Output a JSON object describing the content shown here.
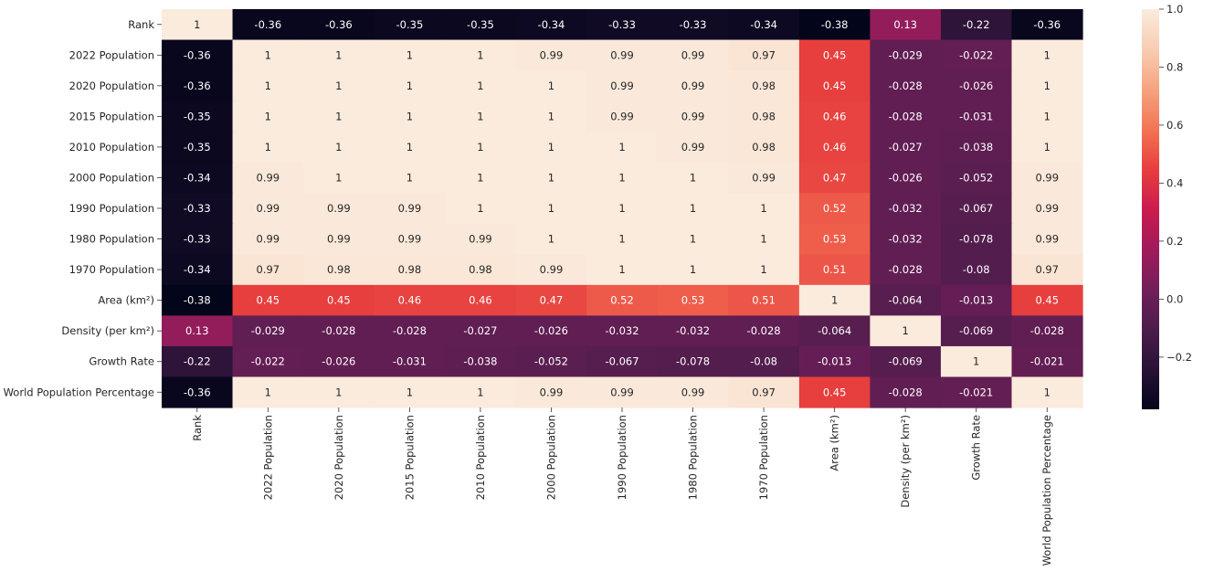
{
  "chart_data": {
    "type": "heatmap",
    "colormap": "rocket",
    "vmin": -0.38,
    "vmax": 1.0,
    "rows": [
      "Rank",
      "2022 Population",
      "2020 Population",
      "2015 Population",
      "2010 Population",
      "2000 Population",
      "1990 Population",
      "1980 Population",
      "1970 Population",
      "Area (km²)",
      "Density (per km²)",
      "Growth Rate",
      "World Population Percentage"
    ],
    "columns": [
      "Rank",
      "2022 Population",
      "2020 Population",
      "2015 Population",
      "2010 Population",
      "2000 Population",
      "1990 Population",
      "1980 Population",
      "1970 Population",
      "Area (km²)",
      "Density (per km²)",
      "Growth Rate",
      "World Population Percentage"
    ],
    "values": [
      [
        1,
        -0.36,
        -0.36,
        -0.35,
        -0.35,
        -0.34,
        -0.33,
        -0.33,
        -0.34,
        -0.38,
        0.13,
        -0.22,
        -0.36
      ],
      [
        -0.36,
        1,
        1,
        1,
        1,
        0.99,
        0.99,
        0.99,
        0.97,
        0.45,
        -0.029,
        -0.022,
        1
      ],
      [
        -0.36,
        1,
        1,
        1,
        1,
        1,
        0.99,
        0.99,
        0.98,
        0.45,
        -0.028,
        -0.026,
        1
      ],
      [
        -0.35,
        1,
        1,
        1,
        1,
        1,
        0.99,
        0.99,
        0.98,
        0.46,
        -0.028,
        -0.031,
        1
      ],
      [
        -0.35,
        1,
        1,
        1,
        1,
        1,
        1,
        0.99,
        0.98,
        0.46,
        -0.027,
        -0.038,
        1
      ],
      [
        -0.34,
        0.99,
        1,
        1,
        1,
        1,
        1,
        1,
        0.99,
        0.47,
        -0.026,
        -0.052,
        0.99
      ],
      [
        -0.33,
        0.99,
        0.99,
        0.99,
        1,
        1,
        1,
        1,
        1,
        0.52,
        -0.032,
        -0.067,
        0.99
      ],
      [
        -0.33,
        0.99,
        0.99,
        0.99,
        0.99,
        1,
        1,
        1,
        1,
        0.53,
        -0.032,
        -0.078,
        0.99
      ],
      [
        -0.34,
        0.97,
        0.98,
        0.98,
        0.98,
        0.99,
        1,
        1,
        1,
        0.51,
        -0.028,
        -0.08,
        0.97
      ],
      [
        -0.38,
        0.45,
        0.45,
        0.46,
        0.46,
        0.47,
        0.52,
        0.53,
        0.51,
        1,
        -0.064,
        -0.013,
        0.45
      ],
      [
        0.13,
        -0.029,
        -0.028,
        -0.028,
        -0.027,
        -0.026,
        -0.032,
        -0.032,
        -0.028,
        -0.064,
        1,
        -0.069,
        -0.028
      ],
      [
        -0.22,
        -0.022,
        -0.026,
        -0.031,
        -0.038,
        -0.052,
        -0.067,
        -0.078,
        -0.08,
        -0.013,
        -0.069,
        1,
        -0.021
      ],
      [
        -0.36,
        1,
        1,
        1,
        1,
        0.99,
        0.99,
        0.99,
        0.97,
        0.45,
        -0.028,
        -0.021,
        1
      ]
    ],
    "colorbar": {
      "ticks": [
        1.0,
        0.8,
        0.6,
        0.4,
        0.2,
        0.0,
        -0.2
      ],
      "tick_labels": [
        "1.0",
        "0.8",
        "0.6",
        "0.4",
        "0.2",
        "0.0",
        "−0.2"
      ]
    },
    "annotated": true,
    "grid": false,
    "title": "",
    "xlabel": "",
    "ylabel": ""
  }
}
